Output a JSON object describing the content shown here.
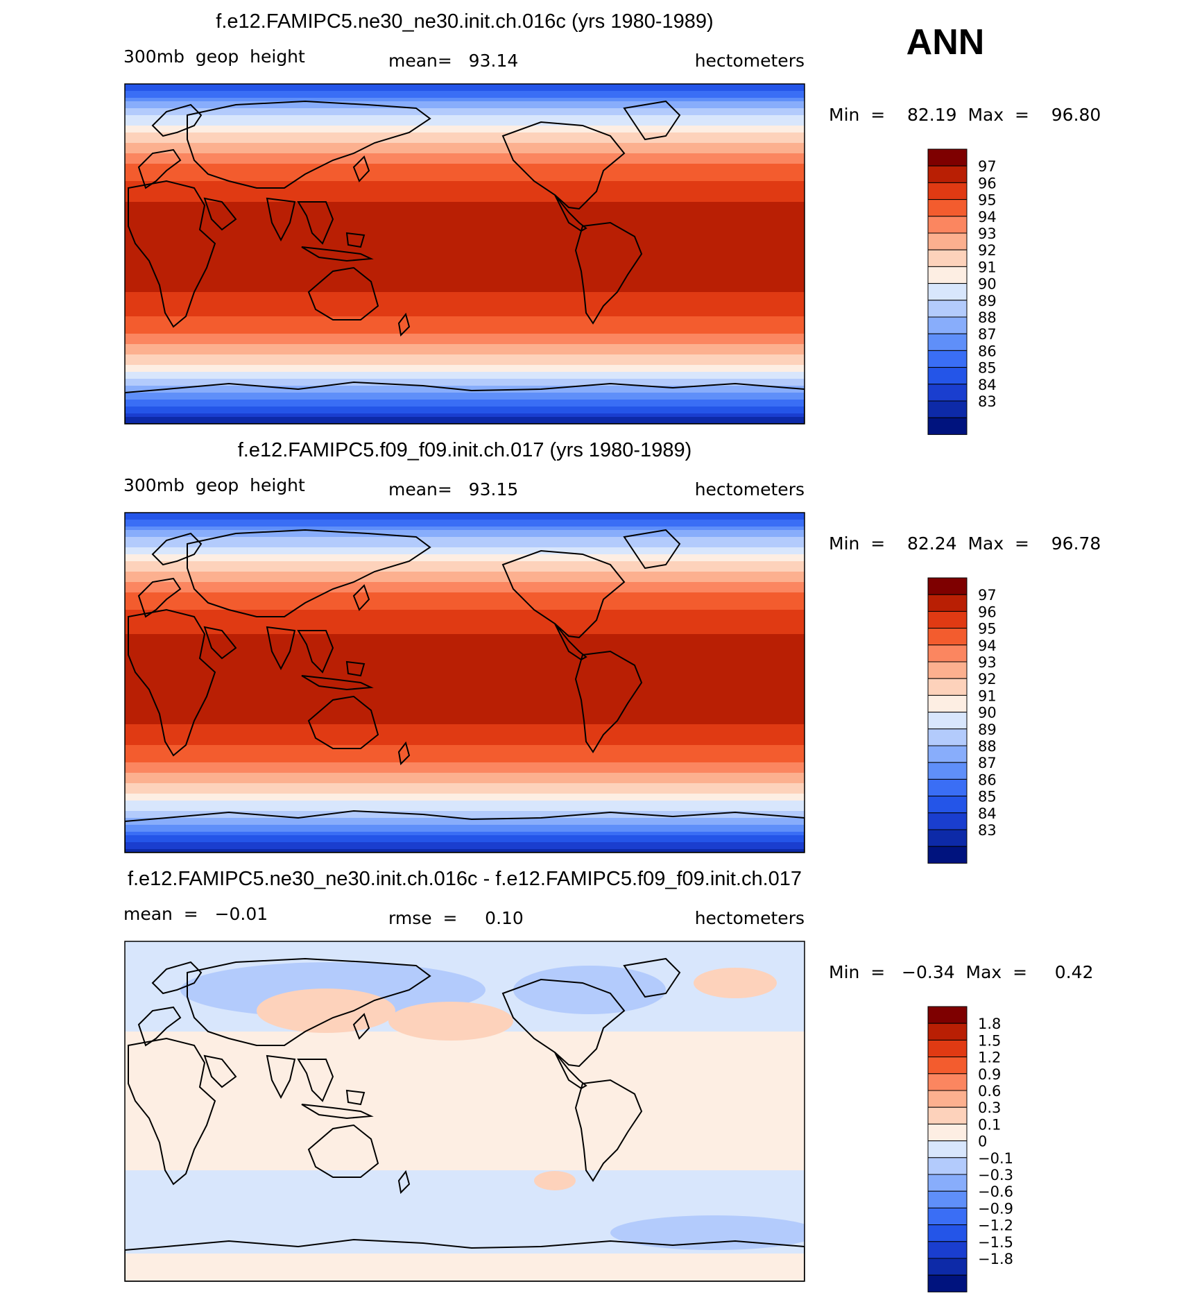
{
  "season": "ANN",
  "panels": [
    {
      "title": "f.e12.FAMIPC5.ne30_ne30.init.ch.016c (yrs 1980-1989)",
      "left_label": "300mb  geop  height",
      "center_label": "mean=   93.14",
      "right_label": "hectometers",
      "minmax": "Min  =    82.19  Max  =    96.80",
      "kind": "abs"
    },
    {
      "title": "f.e12.FAMIPC5.f09_f09.init.ch.017 (yrs 1980-1989)",
      "left_label": "300mb  geop  height",
      "center_label": "mean=   93.15",
      "right_label": "hectometers",
      "minmax": "Min  =    82.24  Max  =    96.78",
      "kind": "abs"
    },
    {
      "title": "f.e12.FAMIPC5.ne30_ne30.init.ch.016c - f.e12.FAMIPC5.f09_f09.init.ch.017",
      "left_label": "mean  =   −0.01",
      "center_label": "rmse  =     0.10",
      "right_label": "hectometers",
      "minmax": "Min  =   −0.34  Max  =     0.42",
      "kind": "diff"
    }
  ],
  "chart_data": [
    {
      "type": "heatmap",
      "title": "f.e12.FAMIPC5.ne30_ne30.init.ch.016c (yrs 1980-1989)",
      "variable": "300mb geop height",
      "units": "hectometers",
      "mean": 93.14,
      "min": 82.19,
      "max": 96.8,
      "contour_levels": [
        83,
        84,
        85,
        86,
        87,
        88,
        89,
        90,
        91,
        92,
        93,
        94,
        95,
        96,
        97
      ],
      "colorbar_labels": [
        "97",
        "96",
        "95",
        "94",
        "93",
        "92",
        "91",
        "90",
        "89",
        "88",
        "87",
        "86",
        "85",
        "84",
        "83"
      ],
      "colors": [
        "#00137e",
        "#0d2aa8",
        "#1a3ecf",
        "#2455e8",
        "#3a6ef5",
        "#5f8ff9",
        "#88adfb",
        "#b3cbfc",
        "#d8e6fc",
        "#fdeee3",
        "#fdd2bb",
        "#fcb08f",
        "#fb8660",
        "#f35c2e",
        "#e03a13",
        "#b91f04",
        "#7e0000"
      ]
    },
    {
      "type": "heatmap",
      "title": "f.e12.FAMIPC5.f09_f09.init.ch.017 (yrs 1980-1989)",
      "variable": "300mb geop height",
      "units": "hectometers",
      "mean": 93.15,
      "min": 82.24,
      "max": 96.78,
      "contour_levels": [
        83,
        84,
        85,
        86,
        87,
        88,
        89,
        90,
        91,
        92,
        93,
        94,
        95,
        96,
        97
      ],
      "colorbar_labels": [
        "97",
        "96",
        "95",
        "94",
        "93",
        "92",
        "91",
        "90",
        "89",
        "88",
        "87",
        "86",
        "85",
        "84",
        "83"
      ],
      "colors": [
        "#00137e",
        "#0d2aa8",
        "#1a3ecf",
        "#2455e8",
        "#3a6ef5",
        "#5f8ff9",
        "#88adfb",
        "#b3cbfc",
        "#d8e6fc",
        "#fdeee3",
        "#fdd2bb",
        "#fcb08f",
        "#fb8660",
        "#f35c2e",
        "#e03a13",
        "#b91f04",
        "#7e0000"
      ]
    },
    {
      "type": "heatmap",
      "title": "f.e12.FAMIPC5.ne30_ne30.init.ch.016c - f.e12.FAMIPC5.f09_f09.init.ch.017",
      "units": "hectometers",
      "mean": -0.01,
      "rmse": 0.1,
      "min": -0.34,
      "max": 0.42,
      "contour_levels": [
        -1.8,
        -1.5,
        -1.2,
        -0.9,
        -0.6,
        -0.3,
        -0.1,
        0,
        0.1,
        0.3,
        0.6,
        0.9,
        1.2,
        1.5,
        1.8
      ],
      "colorbar_labels": [
        "1.8",
        "1.5",
        "1.2",
        "0.9",
        "0.6",
        "0.3",
        "0.1",
        "0",
        "−0.1",
        "−0.3",
        "−0.6",
        "−0.9",
        "−1.2",
        "−1.5",
        "−1.8"
      ],
      "colors": [
        "#00137e",
        "#0d2aa8",
        "#1a3ecf",
        "#2455e8",
        "#3a6ef5",
        "#5f8ff9",
        "#88adfb",
        "#b3cbfc",
        "#d8e6fc",
        "#fdeee3",
        "#fdd2bb",
        "#fcb08f",
        "#fb8660",
        "#f35c2e",
        "#e03a13",
        "#b91f04",
        "#7e0000"
      ]
    }
  ]
}
